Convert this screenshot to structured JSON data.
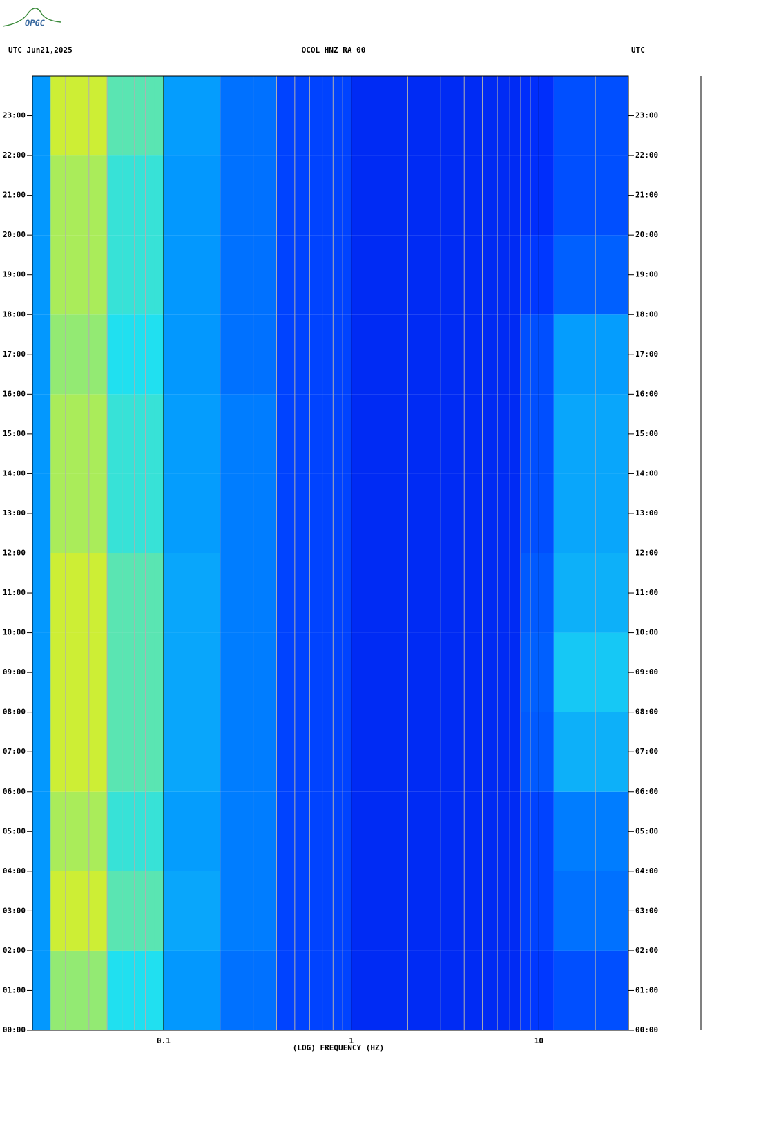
{
  "logo": "OPGC",
  "chart_data": {
    "type": "spectrogram",
    "title": "OCOL HNZ RA 00",
    "left_header": "UTC  Jun21,2025",
    "right_header": "UTC",
    "x_label": "(LOG) FREQUENCY (HZ)",
    "xscale": "log",
    "xlim": [
      0.02,
      30
    ],
    "xticks": [
      {
        "value": 0.1,
        "label": "0.1"
      },
      1,
      10
    ],
    "xminor": [
      0.03,
      0.04,
      0.05,
      0.06,
      0.07,
      0.08,
      0.09,
      0.2,
      0.3,
      0.4,
      0.5,
      0.6,
      0.7,
      0.8,
      0.9,
      2,
      3,
      4,
      5,
      6,
      7,
      8,
      9,
      20
    ],
    "ylim": [
      0,
      24
    ],
    "yticks": [
      {
        "value": 0,
        "label": "00:00"
      },
      {
        "value": 1,
        "label": "01:00"
      },
      {
        "value": 2,
        "label": "02:00"
      },
      {
        "value": 3,
        "label": "03:00"
      },
      {
        "value": 4,
        "label": "04:00"
      },
      {
        "value": 5,
        "label": "05:00"
      },
      {
        "value": 6,
        "label": "06:00"
      },
      {
        "value": 7,
        "label": "07:00"
      },
      {
        "value": 8,
        "label": "08:00"
      },
      {
        "value": 9,
        "label": "09:00"
      },
      {
        "value": 10,
        "label": "10:00"
      },
      {
        "value": 11,
        "label": "11:00"
      },
      {
        "value": 12,
        "label": "12:00"
      },
      {
        "value": 13,
        "label": "13:00"
      },
      {
        "value": 14,
        "label": "14:00"
      },
      {
        "value": 15,
        "label": "15:00"
      },
      {
        "value": 16,
        "label": "16:00"
      },
      {
        "value": 17,
        "label": "17:00"
      },
      {
        "value": 18,
        "label": "18:00"
      },
      {
        "value": 19,
        "label": "19:00"
      },
      {
        "value": 20,
        "label": "20:00"
      },
      {
        "value": 21,
        "label": "21:00"
      },
      {
        "value": 22,
        "label": "22:00"
      },
      {
        "value": 23,
        "label": "23:00"
      }
    ],
    "freq_edges": [
      0.02,
      0.025,
      0.05,
      0.1,
      0.2,
      0.4,
      1,
      8,
      12,
      30
    ],
    "time_edges": [
      0,
      2,
      4,
      6,
      8,
      10,
      12,
      14,
      16,
      18,
      20,
      22,
      24
    ],
    "colormap": [
      "#00008f",
      "#0030ff",
      "#0090ff",
      "#20e0f0",
      "#e0f020",
      "#ff8000",
      "#c00000"
    ],
    "levels": [
      [
        0.35,
        0.6,
        0.5,
        0.35,
        0.28,
        0.2,
        0.15,
        0.18,
        0.22
      ],
      [
        0.35,
        0.65,
        0.55,
        0.38,
        0.3,
        0.2,
        0.15,
        0.2,
        0.28
      ],
      [
        0.35,
        0.62,
        0.52,
        0.36,
        0.3,
        0.2,
        0.15,
        0.2,
        0.3
      ],
      [
        0.35,
        0.65,
        0.55,
        0.38,
        0.3,
        0.2,
        0.15,
        0.24,
        0.4
      ],
      [
        0.35,
        0.65,
        0.55,
        0.38,
        0.3,
        0.2,
        0.15,
        0.25,
        0.45
      ],
      [
        0.35,
        0.65,
        0.55,
        0.38,
        0.3,
        0.2,
        0.15,
        0.24,
        0.4
      ],
      [
        0.35,
        0.62,
        0.52,
        0.36,
        0.3,
        0.2,
        0.15,
        0.22,
        0.38
      ],
      [
        0.35,
        0.62,
        0.52,
        0.36,
        0.3,
        0.2,
        0.15,
        0.22,
        0.38
      ],
      [
        0.35,
        0.6,
        0.5,
        0.35,
        0.28,
        0.2,
        0.15,
        0.22,
        0.36
      ],
      [
        0.35,
        0.62,
        0.52,
        0.35,
        0.28,
        0.2,
        0.15,
        0.18,
        0.25
      ],
      [
        0.35,
        0.62,
        0.52,
        0.35,
        0.28,
        0.2,
        0.15,
        0.16,
        0.22
      ],
      [
        0.35,
        0.65,
        0.55,
        0.36,
        0.28,
        0.2,
        0.15,
        0.16,
        0.22
      ]
    ]
  }
}
